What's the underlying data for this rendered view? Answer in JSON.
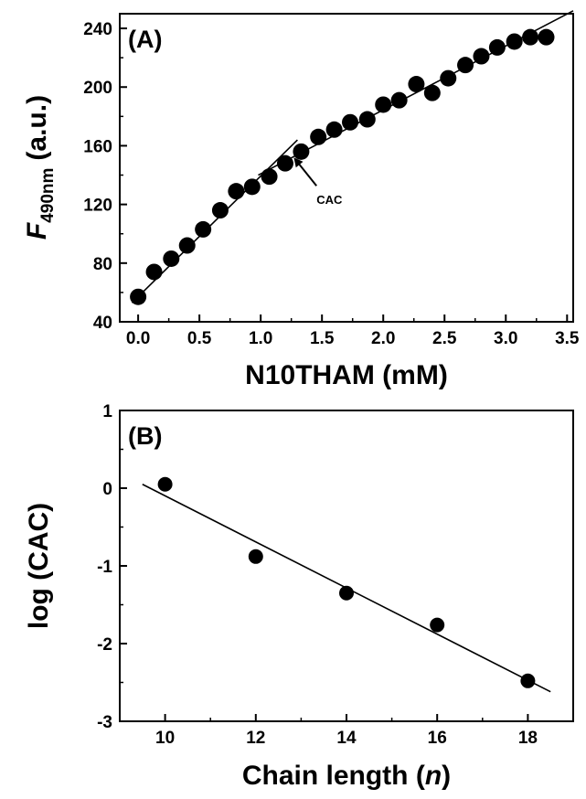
{
  "chart_data": [
    {
      "type": "scatter",
      "panel_label": "(A)",
      "xlabel": "N10THAM (mM)",
      "ylabel_main": "F",
      "ylabel_sub": "490nm",
      "ylabel_unit": "(a.u.)",
      "xlim": [
        -0.15,
        3.55
      ],
      "ylim": [
        40,
        250
      ],
      "x_ticks": [
        0.0,
        0.5,
        1.0,
        1.5,
        2.0,
        2.5,
        3.0,
        3.5
      ],
      "x_tick_labels": [
        "0.0",
        "0.5",
        "1.0",
        "1.5",
        "2.0",
        "2.5",
        "3.0",
        "3.5"
      ],
      "y_ticks": [
        40,
        80,
        120,
        160,
        200,
        240
      ],
      "y_tick_labels": [
        "40",
        "80",
        "120",
        "160",
        "200",
        "240"
      ],
      "points": [
        {
          "x": 0.0,
          "y": 57
        },
        {
          "x": 0.13,
          "y": 74
        },
        {
          "x": 0.27,
          "y": 83
        },
        {
          "x": 0.4,
          "y": 92
        },
        {
          "x": 0.53,
          "y": 103
        },
        {
          "x": 0.67,
          "y": 116
        },
        {
          "x": 0.8,
          "y": 129
        },
        {
          "x": 0.93,
          "y": 132
        },
        {
          "x": 1.07,
          "y": 139
        },
        {
          "x": 1.2,
          "y": 148
        },
        {
          "x": 1.33,
          "y": 156
        },
        {
          "x": 1.47,
          "y": 166
        },
        {
          "x": 1.6,
          "y": 171
        },
        {
          "x": 1.73,
          "y": 176
        },
        {
          "x": 1.87,
          "y": 178
        },
        {
          "x": 2.0,
          "y": 188
        },
        {
          "x": 2.13,
          "y": 191
        },
        {
          "x": 2.27,
          "y": 202
        },
        {
          "x": 2.4,
          "y": 196
        },
        {
          "x": 2.53,
          "y": 206
        },
        {
          "x": 2.67,
          "y": 215
        },
        {
          "x": 2.8,
          "y": 221
        },
        {
          "x": 2.93,
          "y": 227
        },
        {
          "x": 3.07,
          "y": 231
        },
        {
          "x": 3.2,
          "y": 234
        },
        {
          "x": 3.33,
          "y": 234
        }
      ],
      "fit_lines": [
        {
          "x1": -0.05,
          "y1": 53,
          "x2": 1.3,
          "y2": 164
        },
        {
          "x1": 0.98,
          "y1": 140,
          "x2": 3.55,
          "y2": 252
        }
      ],
      "annotation": {
        "text": "CAC",
        "x": 1.27,
        "y": 152,
        "label_x": 1.5,
        "label_y": 124
      }
    },
    {
      "type": "scatter",
      "panel_label": "(B)",
      "xlabel_prefix": "Chain length (",
      "xlabel_var": "n",
      "xlabel_suffix": ")",
      "ylabel": "log (CAC)",
      "xlim": [
        9,
        19
      ],
      "ylim": [
        -3,
        1
      ],
      "x_ticks": [
        10,
        12,
        14,
        16,
        18
      ],
      "x_tick_labels": [
        "10",
        "12",
        "14",
        "16",
        "18"
      ],
      "y_ticks": [
        -3,
        -2,
        -1,
        0,
        1
      ],
      "y_tick_labels": [
        "-3",
        "-2",
        "-1",
        "0",
        "1"
      ],
      "points": [
        {
          "x": 10,
          "y": 0.05
        },
        {
          "x": 12,
          "y": -0.88
        },
        {
          "x": 14,
          "y": -1.35
        },
        {
          "x": 16,
          "y": -1.76
        },
        {
          "x": 18,
          "y": -2.48
        }
      ],
      "fit_lines": [
        {
          "x1": 9.5,
          "y1": 0.05,
          "x2": 18.5,
          "y2": -2.62
        }
      ]
    }
  ]
}
